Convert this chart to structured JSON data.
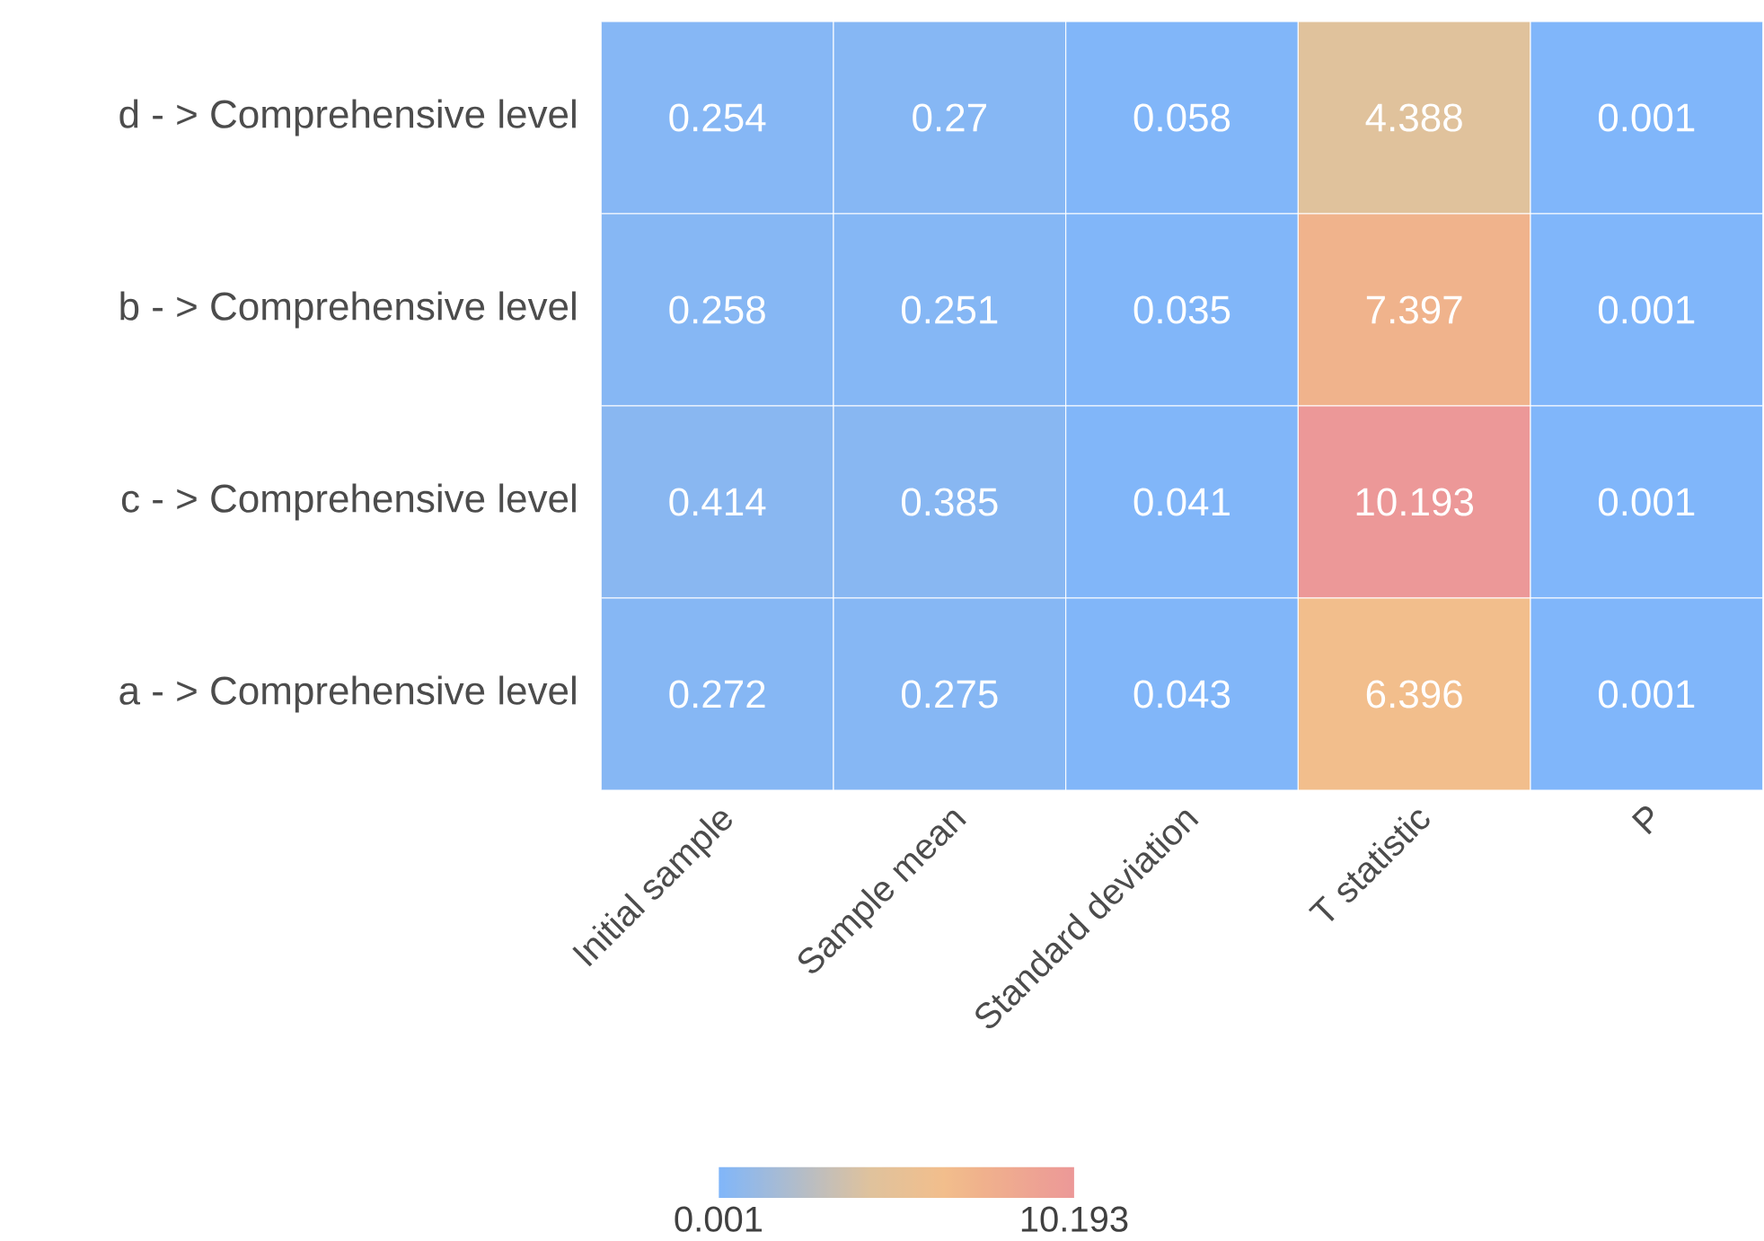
{
  "chart_data": {
    "type": "heatmap",
    "categories": [
      "Initial sample",
      "Sample mean",
      "Standard deviation",
      "T statistic",
      "P"
    ],
    "y_categories": [
      "d - > Comprehensive level",
      "b - > Comprehensive level",
      "c - > Comprehensive level",
      "a - > Comprehensive level"
    ],
    "cells": [
      [
        0.254,
        0.27,
        0.058,
        4.388,
        0.001
      ],
      [
        0.258,
        0.251,
        0.035,
        7.397,
        0.001
      ],
      [
        0.414,
        0.385,
        0.041,
        10.193,
        0.001
      ],
      [
        0.272,
        0.275,
        0.043,
        6.396,
        0.001
      ]
    ],
    "data_labels": true,
    "clim": [
      0.001,
      10.193
    ],
    "cticks": [
      0.001,
      10.193
    ]
  }
}
